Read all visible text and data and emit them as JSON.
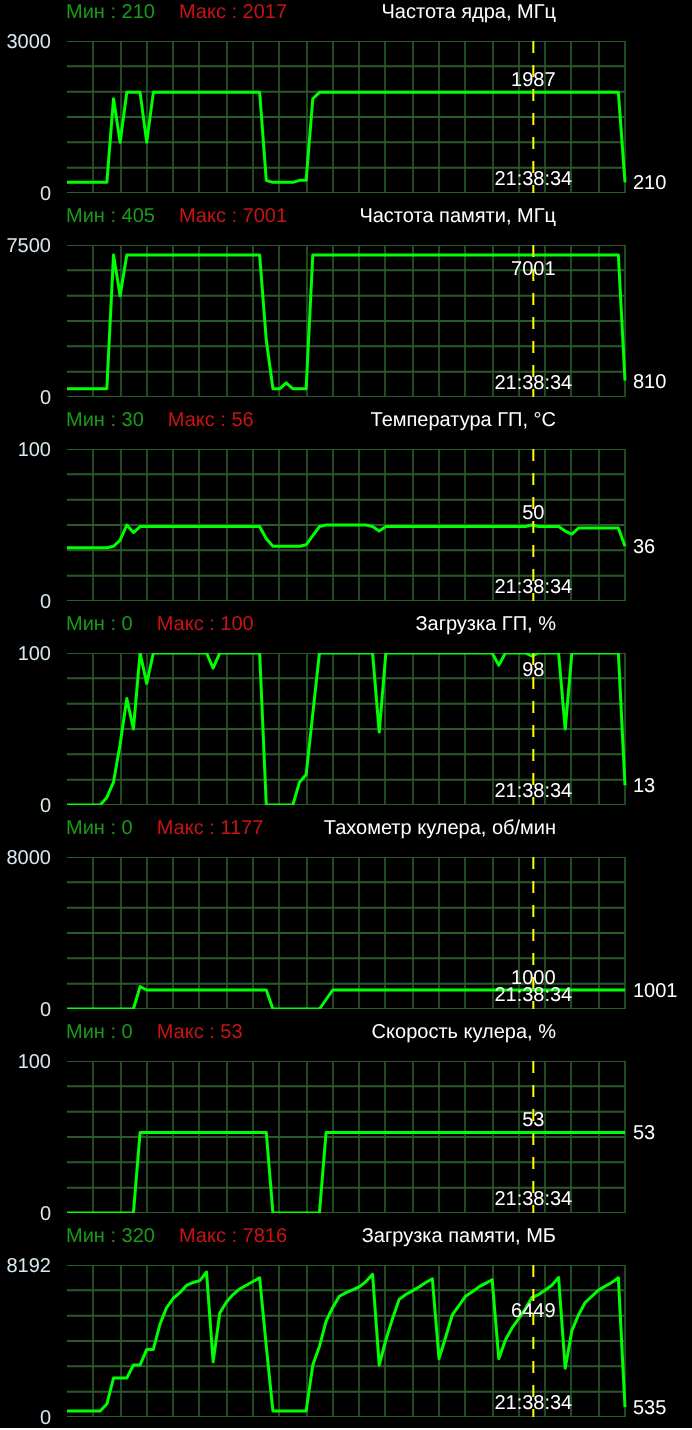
{
  "chart_data": [
    {
      "type": "line",
      "title": "Частота ядра, МГц",
      "annotations": [
        "Мин : 210",
        "Макс : 2017",
        "1987",
        "210",
        "21:38:34"
      ],
      "categories": [
        null,
        null,
        null,
        null,
        null,
        null,
        null,
        null,
        null,
        null,
        null,
        null,
        null,
        null,
        null,
        null,
        null,
        null,
        null,
        null,
        null,
        null,
        null,
        null,
        null,
        null,
        null,
        null,
        null,
        null,
        null,
        null,
        null,
        null,
        null,
        null,
        null,
        null,
        null,
        null,
        null,
        null,
        null,
        null,
        null,
        null,
        null,
        null,
        null,
        null,
        null,
        null,
        null,
        null,
        null,
        null,
        null,
        null,
        null,
        null,
        null,
        null,
        null,
        null,
        null,
        null,
        null,
        null,
        null,
        null,
        null,
        null,
        null,
        null,
        null,
        null,
        null,
        null,
        null,
        null,
        null,
        null,
        null,
        null,
        null
      ],
      "series": [
        {
          "color": "#00ff00",
          "values": [
            210,
            210,
            210,
            210,
            210,
            210,
            210,
            1860,
            1000,
            1987,
            1987,
            1987,
            1000,
            1987,
            1987,
            1987,
            1987,
            1987,
            1987,
            1987,
            1987,
            1987,
            1987,
            1987,
            1987,
            1987,
            1987,
            1987,
            1987,
            1987,
            250,
            210,
            210,
            210,
            210,
            250,
            250,
            1860,
            1987,
            1987,
            1987,
            1987,
            1987,
            1987,
            1987,
            1987,
            1987,
            1987,
            1987,
            1987,
            1987,
            1987,
            1987,
            1987,
            1987,
            1987,
            1987,
            1987,
            1987,
            1987,
            1987,
            1987,
            1987,
            1987,
            1987,
            1987,
            1987,
            1987,
            1987,
            1987,
            1987,
            1987,
            1987,
            1987,
            1987,
            1987,
            1987,
            1987,
            1987,
            1987,
            1987,
            1987,
            1987,
            1987,
            210
          ]
        }
      ],
      "ylim": [
        0,
        3000
      ],
      "yticks": [
        0,
        {
          "value": 500,
          "label": null
        },
        {
          "value": 1000,
          "label": null
        },
        {
          "value": 1500,
          "label": null
        },
        {
          "value": 2000,
          "label": null
        },
        {
          "value": 2500,
          "label": null
        },
        3000
      ],
      "grid": true,
      "tick_labels": "y"
    },
    {
      "type": "line",
      "title": "Частота памяти, МГц",
      "annotations": [
        "Мин : 405",
        "Макс : 7001",
        "7001",
        "810",
        "21:38:34"
      ],
      "categories": [
        null,
        null,
        null,
        null,
        null,
        null,
        null,
        null,
        null,
        null,
        null,
        null,
        null,
        null,
        null,
        null,
        null,
        null,
        null,
        null,
        null,
        null,
        null,
        null,
        null,
        null,
        null,
        null,
        null,
        null,
        null,
        null,
        null,
        null,
        null,
        null,
        null,
        null,
        null,
        null,
        null,
        null,
        null,
        null,
        null,
        null,
        null,
        null,
        null,
        null,
        null,
        null,
        null,
        null,
        null,
        null,
        null,
        null,
        null,
        null,
        null,
        null,
        null,
        null,
        null,
        null,
        null,
        null,
        null,
        null,
        null,
        null,
        null,
        null,
        null,
        null,
        null,
        null,
        null,
        null,
        null,
        null,
        null,
        null,
        null
      ],
      "series": [
        {
          "color": "#00ff00",
          "values": [
            405,
            405,
            405,
            405,
            405,
            405,
            405,
            7001,
            5000,
            7001,
            7001,
            7001,
            7001,
            7001,
            7001,
            7001,
            7001,
            7001,
            7001,
            7001,
            7001,
            7001,
            7001,
            7001,
            7001,
            7001,
            7001,
            7001,
            7001,
            7001,
            2800,
            405,
            405,
            700,
            405,
            405,
            405,
            7001,
            7001,
            7001,
            7001,
            7001,
            7001,
            7001,
            7001,
            7001,
            7001,
            7001,
            7001,
            7001,
            7001,
            7001,
            7001,
            7001,
            7001,
            7001,
            7001,
            7001,
            7001,
            7001,
            7001,
            7001,
            7001,
            7001,
            7001,
            7001,
            7001,
            7001,
            7001,
            7001,
            7001,
            7001,
            7001,
            7001,
            7001,
            7001,
            7001,
            7001,
            7001,
            7001,
            7001,
            7001,
            7001,
            7001,
            810
          ]
        }
      ],
      "ylim": [
        0,
        7500
      ],
      "yticks": [
        0,
        {
          "value": 1250,
          "label": null
        },
        {
          "value": 2500,
          "label": null
        },
        {
          "value": 3750,
          "label": null
        },
        {
          "value": 5000,
          "label": null
        },
        {
          "value": 6250,
          "label": null
        },
        7500
      ],
      "grid": true,
      "tick_labels": "y"
    },
    {
      "type": "line",
      "title": "Температура ГП, °C",
      "annotations": [
        "Мин : 30",
        "Макс : 56",
        "50",
        "36",
        "21:38:34"
      ],
      "categories": [
        null,
        null,
        null,
        null,
        null,
        null,
        null,
        null,
        null,
        null,
        null,
        null,
        null,
        null,
        null,
        null,
        null,
        null,
        null,
        null,
        null,
        null,
        null,
        null,
        null,
        null,
        null,
        null,
        null,
        null,
        null,
        null,
        null,
        null,
        null,
        null,
        null,
        null,
        null,
        null,
        null,
        null,
        null,
        null,
        null,
        null,
        null,
        null,
        null,
        null,
        null,
        null,
        null,
        null,
        null,
        null,
        null,
        null,
        null,
        null,
        null,
        null,
        null,
        null,
        null,
        null,
        null,
        null,
        null,
        null,
        null,
        null,
        null,
        null,
        null,
        null,
        null,
        null,
        null,
        null,
        null,
        null,
        null,
        null,
        null
      ],
      "series": [
        {
          "color": "#00ff00",
          "values": [
            35,
            35,
            35,
            35,
            35,
            35,
            35,
            36,
            40,
            50,
            45,
            49,
            49,
            49,
            49,
            49,
            49,
            49,
            49,
            49,
            49,
            49,
            49,
            49,
            49,
            49,
            49,
            49,
            49,
            49,
            41,
            36,
            36,
            36,
            36,
            36,
            37,
            43,
            49,
            50,
            50,
            50,
            50,
            50,
            50,
            50,
            49,
            46,
            49,
            49,
            49,
            49,
            49,
            49,
            49,
            49,
            49,
            49,
            49,
            49,
            49,
            49,
            49,
            49,
            49,
            49,
            49,
            49,
            49,
            49,
            50,
            49,
            49,
            49,
            49,
            46,
            44,
            48,
            48,
            48,
            48,
            48,
            48,
            48,
            36
          ]
        }
      ],
      "ylim": [
        0,
        100
      ],
      "yticks": [
        0,
        {
          "value": 16.67,
          "label": null
        },
        {
          "value": 33.33,
          "label": null
        },
        {
          "value": 50,
          "label": null
        },
        {
          "value": 66.67,
          "label": null
        },
        {
          "value": 83.33,
          "label": null
        },
        100
      ],
      "grid": true,
      "tick_labels": "y"
    },
    {
      "type": "line",
      "title": "Загрузка ГП, %",
      "annotations": [
        "Мин : 0",
        "Макс : 100",
        "98",
        "13",
        "21:38:34"
      ],
      "categories": [
        null,
        null,
        null,
        null,
        null,
        null,
        null,
        null,
        null,
        null,
        null,
        null,
        null,
        null,
        null,
        null,
        null,
        null,
        null,
        null,
        null,
        null,
        null,
        null,
        null,
        null,
        null,
        null,
        null,
        null,
        null,
        null,
        null,
        null,
        null,
        null,
        null,
        null,
        null,
        null,
        null,
        null,
        null,
        null,
        null,
        null,
        null,
        null,
        null,
        null,
        null,
        null,
        null,
        null,
        null,
        null,
        null,
        null,
        null,
        null,
        null,
        null,
        null,
        null,
        null,
        null,
        null,
        null,
        null,
        null,
        null,
        null,
        null,
        null,
        null,
        null,
        null,
        null,
        null,
        null,
        null,
        null,
        null,
        null,
        null
      ],
      "series": [
        {
          "color": "#00ff00",
          "values": [
            0,
            0,
            0,
            0,
            0,
            0,
            5,
            15,
            40,
            70,
            50,
            100,
            80,
            100,
            100,
            100,
            100,
            100,
            100,
            100,
            100,
            100,
            90,
            100,
            100,
            100,
            100,
            100,
            100,
            100,
            0,
            0,
            0,
            0,
            0,
            15,
            20,
            60,
            100,
            100,
            100,
            100,
            100,
            100,
            100,
            100,
            100,
            48,
            100,
            100,
            100,
            100,
            100,
            100,
            100,
            100,
            100,
            100,
            100,
            100,
            100,
            100,
            100,
            100,
            100,
            92,
            100,
            100,
            100,
            100,
            98,
            100,
            100,
            100,
            100,
            50,
            100,
            100,
            100,
            100,
            100,
            100,
            100,
            100,
            13
          ]
        }
      ],
      "ylim": [
        0,
        100
      ],
      "yticks": [
        0,
        {
          "value": 16.67,
          "label": null
        },
        {
          "value": 33.33,
          "label": null
        },
        {
          "value": 50,
          "label": null
        },
        {
          "value": 66.67,
          "label": null
        },
        {
          "value": 83.33,
          "label": null
        },
        100
      ],
      "grid": true,
      "tick_labels": "y"
    },
    {
      "type": "line",
      "title": "Тахометр кулера, об/мин",
      "annotations": [
        "Мин : 0",
        "Макс : 1177",
        "1000",
        "1001",
        "21:38:34"
      ],
      "categories": [
        null,
        null,
        null,
        null,
        null,
        null,
        null,
        null,
        null,
        null,
        null,
        null,
        null,
        null,
        null,
        null,
        null,
        null,
        null,
        null,
        null,
        null,
        null,
        null,
        null,
        null,
        null,
        null,
        null,
        null,
        null,
        null,
        null,
        null,
        null,
        null,
        null,
        null,
        null,
        null,
        null,
        null,
        null,
        null,
        null,
        null,
        null,
        null,
        null,
        null,
        null,
        null,
        null,
        null,
        null,
        null,
        null,
        null,
        null,
        null,
        null,
        null,
        null,
        null,
        null,
        null,
        null,
        null,
        null,
        null,
        null,
        null,
        null,
        null,
        null,
        null,
        null,
        null,
        null,
        null,
        null,
        null,
        null,
        null,
        null
      ],
      "series": [
        {
          "color": "#00ff00",
          "values": [
            0,
            0,
            0,
            0,
            0,
            0,
            0,
            0,
            0,
            0,
            0,
            1177,
            1000,
            1000,
            1000,
            1000,
            1000,
            1000,
            1000,
            1000,
            1000,
            1000,
            1000,
            1000,
            1000,
            1000,
            1000,
            1000,
            1000,
            1000,
            1000,
            0,
            0,
            0,
            0,
            0,
            0,
            0,
            0,
            500,
            1000,
            1000,
            1000,
            1000,
            1000,
            1000,
            1000,
            1000,
            1000,
            1000,
            1000,
            1000,
            1000,
            1000,
            1000,
            1000,
            1000,
            1000,
            1000,
            1000,
            1000,
            1000,
            1000,
            1000,
            1000,
            1000,
            1000,
            1000,
            1000,
            1000,
            1000,
            1000,
            1000,
            1000,
            1000,
            1000,
            1000,
            1000,
            1000,
            1000,
            1000,
            1000,
            1000,
            1000,
            1001
          ]
        }
      ],
      "ylim": [
        0,
        8000
      ],
      "yticks": [
        0,
        {
          "value": 1333.33,
          "label": null
        },
        {
          "value": 2666.67,
          "label": null
        },
        {
          "value": 4000,
          "label": null
        },
        {
          "value": 5333.33,
          "label": null
        },
        {
          "value": 6666.67,
          "label": null
        },
        8000
      ],
      "grid": true,
      "tick_labels": "y"
    },
    {
      "type": "line",
      "title": "Скорость кулера, %",
      "annotations": [
        "Мин : 0",
        "Макс : 53",
        "53",
        "53",
        "21:38:34"
      ],
      "categories": [
        null,
        null,
        null,
        null,
        null,
        null,
        null,
        null,
        null,
        null,
        null,
        null,
        null,
        null,
        null,
        null,
        null,
        null,
        null,
        null,
        null,
        null,
        null,
        null,
        null,
        null,
        null,
        null,
        null,
        null,
        null,
        null,
        null,
        null,
        null,
        null,
        null,
        null,
        null,
        null,
        null,
        null,
        null,
        null,
        null,
        null,
        null,
        null,
        null,
        null,
        null,
        null,
        null,
        null,
        null,
        null,
        null,
        null,
        null,
        null,
        null,
        null,
        null,
        null,
        null,
        null,
        null,
        null,
        null,
        null,
        null,
        null,
        null,
        null,
        null,
        null,
        null,
        null,
        null,
        null,
        null,
        null,
        null,
        null,
        null
      ],
      "series": [
        {
          "color": "#00ff00",
          "values": [
            0,
            0,
            0,
            0,
            0,
            0,
            0,
            0,
            0,
            0,
            0,
            53,
            53,
            53,
            53,
            53,
            53,
            53,
            53,
            53,
            53,
            53,
            53,
            53,
            53,
            53,
            53,
            53,
            53,
            53,
            53,
            0,
            0,
            0,
            0,
            0,
            0,
            0,
            0,
            53,
            53,
            53,
            53,
            53,
            53,
            53,
            53,
            53,
            53,
            53,
            53,
            53,
            53,
            53,
            53,
            53,
            53,
            53,
            53,
            53,
            53,
            53,
            53,
            53,
            53,
            53,
            53,
            53,
            53,
            53,
            53,
            53,
            53,
            53,
            53,
            53,
            53,
            53,
            53,
            53,
            53,
            53,
            53,
            53,
            53
          ]
        }
      ],
      "ylim": [
        0,
        100
      ],
      "yticks": [
        0,
        {
          "value": 16.67,
          "label": null
        },
        {
          "value": 33.33,
          "label": null
        },
        {
          "value": 50,
          "label": null
        },
        {
          "value": 66.67,
          "label": null
        },
        {
          "value": 83.33,
          "label": null
        },
        100
      ],
      "grid": true,
      "tick_labels": "y"
    },
    {
      "type": "line",
      "title": "Загрузка памяти, МБ",
      "annotations": [
        "Мин : 320",
        "Макс : 7816",
        "6449",
        "535",
        "21:38:34"
      ],
      "categories": [
        null,
        null,
        null,
        null,
        null,
        null,
        null,
        null,
        null,
        null,
        null,
        null,
        null,
        null,
        null,
        null,
        null,
        null,
        null,
        null,
        null,
        null,
        null,
        null,
        null,
        null,
        null,
        null,
        null,
        null,
        null,
        null,
        null,
        null,
        null,
        null,
        null,
        null,
        null,
        null,
        null,
        null,
        null,
        null,
        null,
        null,
        null,
        null,
        null,
        null,
        null,
        null,
        null,
        null,
        null,
        null,
        null,
        null,
        null,
        null,
        null,
        null,
        null,
        null,
        null,
        null,
        null,
        null,
        null,
        null,
        null,
        null,
        null,
        null,
        null,
        null,
        null,
        null,
        null,
        null,
        null,
        null,
        null,
        null,
        null
      ],
      "series": [
        {
          "color": "#00ff00",
          "values": [
            320,
            320,
            320,
            320,
            320,
            320,
            700,
            2100,
            2100,
            2100,
            2800,
            2800,
            3640,
            3640,
            5000,
            5900,
            6400,
            6700,
            7100,
            7250,
            7350,
            7816,
            2970,
            5600,
            6200,
            6600,
            6900,
            7100,
            7300,
            7500,
            3810,
            320,
            320,
            320,
            320,
            320,
            320,
            2800,
            3800,
            5160,
            5900,
            6510,
            6700,
            6850,
            7010,
            7300,
            7690,
            2800,
            4150,
            5300,
            6340,
            6600,
            6800,
            7010,
            7250,
            7450,
            3140,
            4300,
            5500,
            6000,
            6510,
            6750,
            7010,
            7200,
            7400,
            3140,
            4150,
            4800,
            5300,
            5830,
            6449,
            6600,
            6840,
            7100,
            7520,
            2630,
            4650,
            5500,
            6170,
            6500,
            6840,
            7050,
            7250,
            7500,
            535
          ]
        }
      ],
      "ylim": [
        0,
        8192
      ],
      "yticks": [
        0,
        {
          "value": 1365.33,
          "label": null
        },
        {
          "value": 2730.67,
          "label": null
        },
        {
          "value": 4096,
          "label": null
        },
        {
          "value": 5461.33,
          "label": null
        },
        {
          "value": 6826.67,
          "label": null
        },
        8192
      ],
      "grid": true,
      "tick_labels": "y"
    }
  ]
}
